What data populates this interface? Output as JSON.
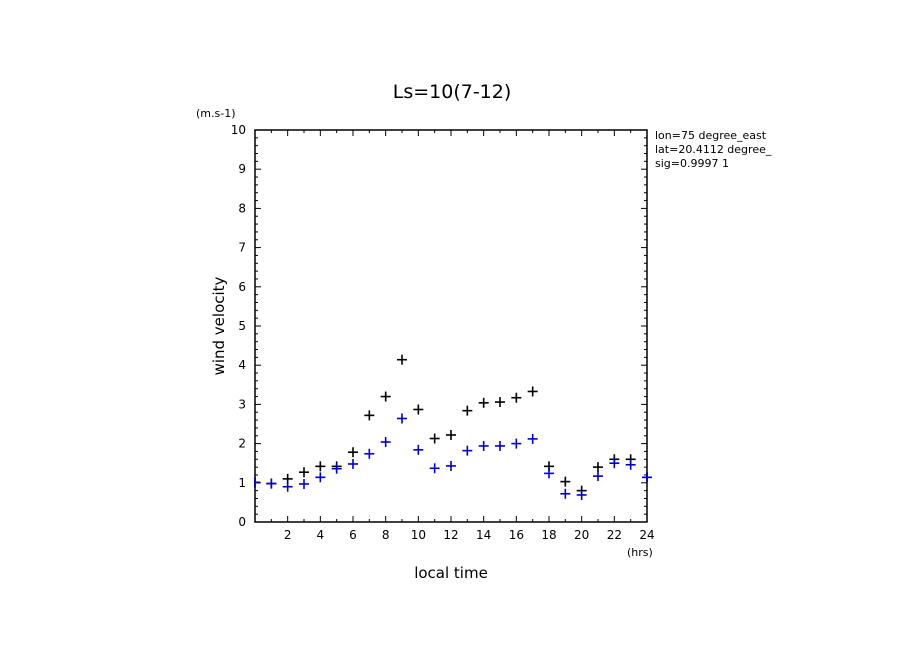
{
  "chart_data": {
    "type": "scatter",
    "title": "Ls=10(7-12)",
    "xlabel": "local time",
    "ylabel": "wind velocity",
    "x_unit": "(hrs)",
    "y_unit": "(m.s-1)",
    "xlim": [
      0,
      24
    ],
    "ylim": [
      0,
      10
    ],
    "x_tick_labels": [
      "2",
      "4",
      "6",
      "8",
      "10",
      "12",
      "14",
      "16",
      "18",
      "20",
      "22",
      "24"
    ],
    "y_tick_labels": [
      "0",
      "1",
      "2",
      "3",
      "4",
      "5",
      "6",
      "7",
      "8",
      "9",
      "10"
    ],
    "annotations": [
      "lon=75 degree_east",
      "lat=20.4112 degree_",
      "sig=0.9997 1"
    ],
    "grid": false,
    "legend": "none",
    "marker": "+",
    "series": [
      {
        "color": "#000000",
        "x": [
          0,
          1,
          2,
          3,
          4,
          5,
          6,
          7,
          8,
          9,
          10,
          11,
          12,
          13,
          14,
          15,
          16,
          17,
          18,
          19,
          20,
          21,
          22,
          23,
          24
        ],
        "y": [
          1.01,
          0.98,
          1.1,
          1.27,
          1.42,
          1.42,
          1.78,
          2.72,
          3.2,
          4.14,
          2.87,
          2.13,
          2.22,
          2.84,
          3.04,
          3.06,
          3.17,
          3.33,
          1.42,
          1.03,
          0.8,
          1.4,
          1.6,
          1.6,
          1.14
        ]
      },
      {
        "color": "#0000cc",
        "x": [
          0,
          1,
          2,
          3,
          4,
          5,
          6,
          7,
          8,
          9,
          10,
          11,
          12,
          13,
          14,
          15,
          16,
          17,
          18,
          19,
          20,
          21,
          22,
          23,
          24
        ],
        "y": [
          1.01,
          0.98,
          0.9,
          0.97,
          1.14,
          1.36,
          1.48,
          1.74,
          2.04,
          2.64,
          1.84,
          1.37,
          1.43,
          1.82,
          1.94,
          1.94,
          2.0,
          2.12,
          1.24,
          0.72,
          0.69,
          1.17,
          1.5,
          1.46,
          1.14
        ]
      }
    ]
  }
}
